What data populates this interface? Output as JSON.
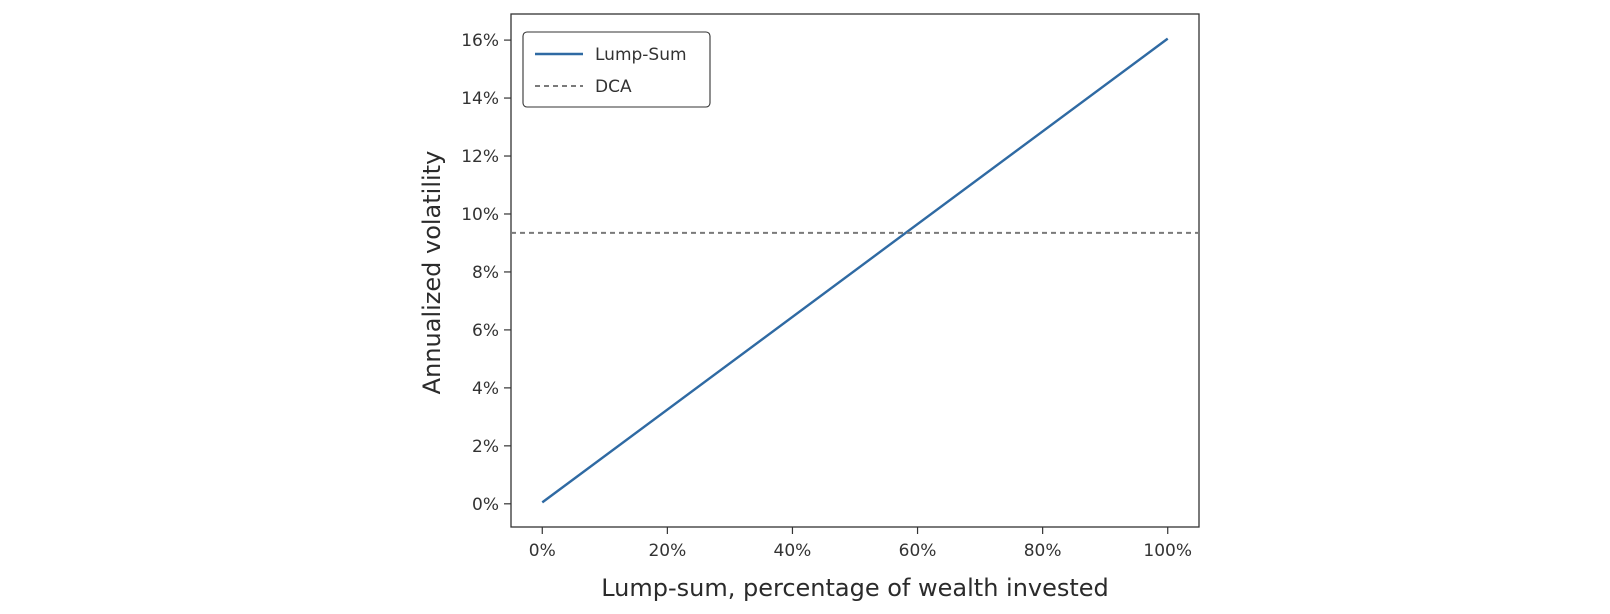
{
  "chart_data": {
    "type": "line",
    "title": "",
    "xlabel": "Lump-sum, percentage of wealth invested",
    "ylabel": "Annualized volatility",
    "xlim": [
      -5,
      105
    ],
    "ylim": [
      -0.8,
      16.9
    ],
    "xticks": [
      0,
      20,
      40,
      60,
      80,
      100
    ],
    "xtick_labels": [
      "0%",
      "20%",
      "40%",
      "60%",
      "80%",
      "100%"
    ],
    "yticks": [
      0,
      2,
      4,
      6,
      8,
      10,
      12,
      14,
      16
    ],
    "ytick_labels": [
      "0%",
      "2%",
      "4%",
      "6%",
      "8%",
      "10%",
      "12%",
      "14%",
      "16%"
    ],
    "grid": false,
    "legend_position": "top-left",
    "series": [
      {
        "name": "Lump-Sum",
        "style": "solid",
        "color": "#2f6aa3",
        "x": [
          0,
          100
        ],
        "y": [
          0.05,
          16.05
        ]
      },
      {
        "name": "DCA",
        "style": "dashed",
        "color": "#7a7a7a",
        "x": [
          -5,
          105
        ],
        "y": [
          9.35,
          9.35
        ]
      }
    ]
  }
}
